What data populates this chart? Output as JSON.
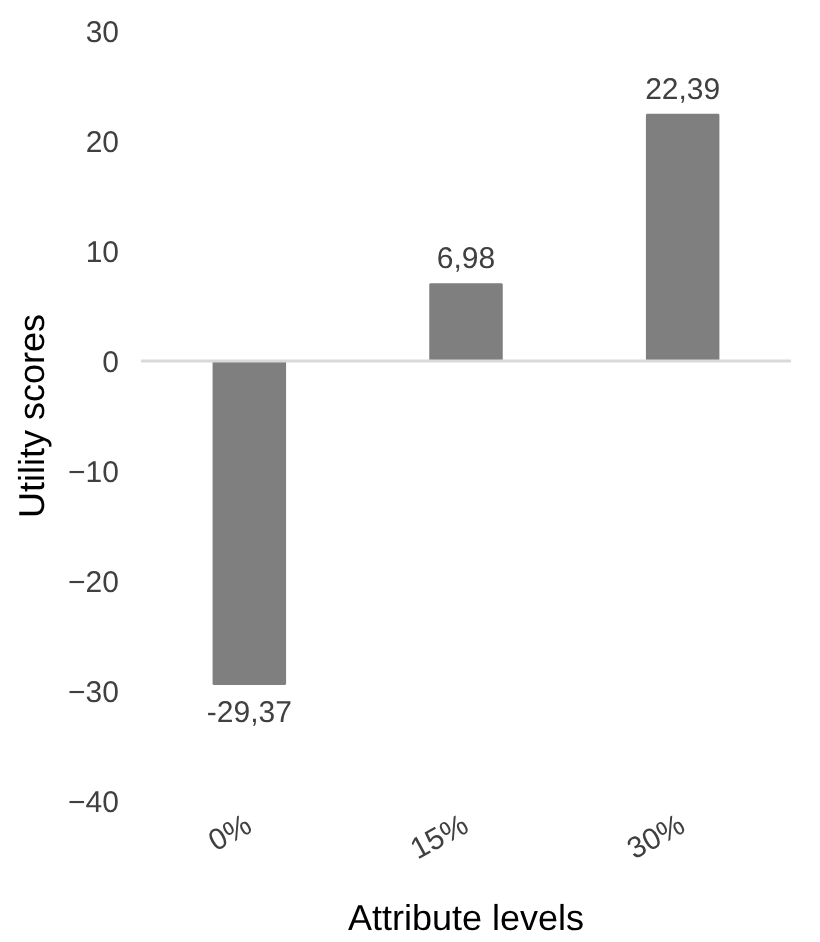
{
  "chart_data": {
    "type": "bar",
    "xlabel": "Attribute levels",
    "ylabel": "Utility scores",
    "categories": [
      "0%",
      "15%",
      "30%"
    ],
    "values": [
      -29.37,
      6.98,
      22.39
    ],
    "value_labels": [
      "-29,37",
      "6,98",
      "22,39"
    ],
    "color": "#7f7f7f",
    "ylim": [
      -40,
      30
    ],
    "yticks": [
      -40,
      -30,
      -20,
      -10,
      0,
      10,
      20,
      30
    ]
  }
}
